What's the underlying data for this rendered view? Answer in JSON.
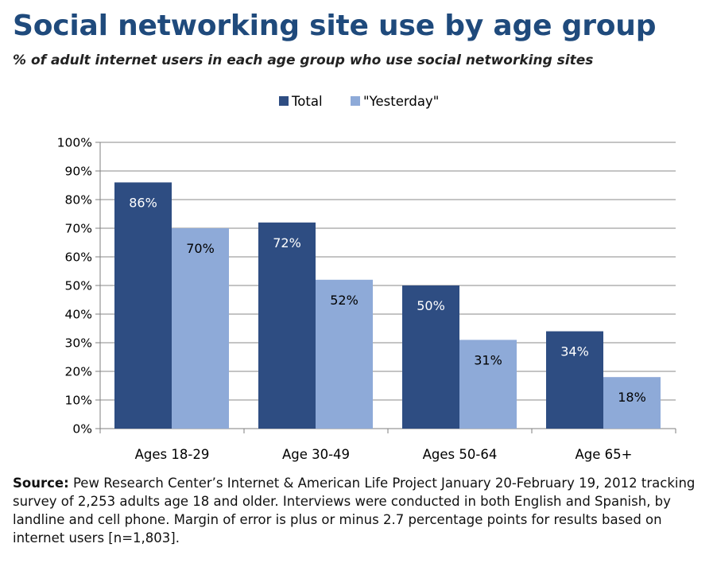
{
  "title": "Social networking site use by age group",
  "subtitle": "% of adult internet users in each age group who use social networking sites",
  "source": {
    "label": "Source:",
    "text": "Pew Research Center’s Internet & American Life Project January 20-February 19, 2012 tracking survey of 2,253 adults age 18 and older. Interviews were conducted in both English and Spanish, by landline and cell phone. Margin of error is plus or minus 2.7 percentage points for results based on internet users [n=1,803]."
  },
  "chart_data": {
    "type": "bar",
    "categories": [
      "Ages 18-29",
      "Age 30-49",
      "Ages 50-64",
      "Age 65+"
    ],
    "series": [
      {
        "name": "Total",
        "color": "#2e4d82",
        "label_color": "#ffffff",
        "values": [
          86,
          72,
          50,
          34
        ]
      },
      {
        "name": "\"Yesterday\"",
        "color": "#8eaad8",
        "label_color": "#000000",
        "values": [
          70,
          52,
          31,
          18
        ]
      }
    ],
    "y_ticks": [
      "0%",
      "10%",
      "20%",
      "30%",
      "40%",
      "50%",
      "60%",
      "70%",
      "80%",
      "90%",
      "100%"
    ],
    "ylim": [
      0,
      100
    ],
    "value_suffix": "%",
    "grid": true,
    "legend_position": "top-center"
  }
}
